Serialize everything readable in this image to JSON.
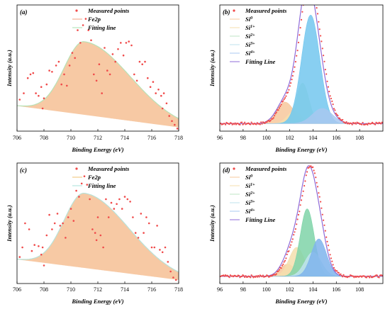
{
  "chart_data": [
    {
      "panel": "(a)",
      "type": "scatter",
      "xlabel": "Binding Energy (eV)",
      "ylabel": "Intensity (a.u.)",
      "xlim": [
        706,
        718
      ],
      "ylim": [
        0,
        1
      ],
      "xticks": [
        706,
        708,
        710,
        712,
        714,
        716,
        718
      ],
      "legend_position": "top-left",
      "legend": [
        {
          "label": "Measured points",
          "kind": "points",
          "color": "#f04a4a"
        },
        {
          "label": "Fe2p",
          "kind": "line",
          "color": "#f0a080"
        },
        {
          "label": "Fitting line",
          "kind": "line",
          "color": "#a8e0b0"
        }
      ],
      "components": [
        {
          "kind": "fill",
          "color": "#f7c9a4",
          "stroke": "#b8e2b6",
          "center": 711.0,
          "height": 0.58,
          "left_width": 1.5,
          "right_width": 3.4
        }
      ],
      "baseline": [
        [
          706,
          0.2
        ],
        [
          718,
          0.03
        ]
      ],
      "points": [
        [
          706.2,
          0.25
        ],
        [
          706.5,
          0.3
        ],
        [
          706.8,
          0.42
        ],
        [
          707.0,
          0.45
        ],
        [
          707.2,
          0.46
        ],
        [
          707.4,
          0.3
        ],
        [
          707.6,
          0.28
        ],
        [
          707.8,
          0.35
        ],
        [
          708.0,
          0.26
        ],
        [
          708.2,
          0.37
        ],
        [
          708.4,
          0.48
        ],
        [
          708.6,
          0.47
        ],
        [
          708.9,
          0.52
        ],
        [
          709.1,
          0.55
        ],
        [
          709.3,
          0.37
        ],
        [
          709.5,
          0.45
        ],
        [
          709.7,
          0.36
        ],
        [
          709.9,
          0.52
        ],
        [
          710.1,
          0.62
        ],
        [
          710.3,
          0.58
        ],
        [
          710.5,
          0.8
        ],
        [
          710.7,
          0.7
        ],
        [
          710.9,
          0.84
        ],
        [
          711.1,
          0.89
        ],
        [
          711.3,
          0.8
        ],
        [
          711.5,
          0.72
        ],
        [
          711.7,
          0.45
        ],
        [
          711.9,
          0.4
        ],
        [
          712.1,
          0.53
        ],
        [
          712.3,
          0.3
        ],
        [
          712.5,
          0.66
        ],
        [
          712.7,
          0.48
        ],
        [
          712.9,
          0.45
        ],
        [
          713.1,
          0.61
        ],
        [
          713.3,
          0.55
        ],
        [
          713.5,
          0.65
        ],
        [
          713.7,
          0.7
        ],
        [
          713.9,
          0.6
        ],
        [
          714.1,
          0.7
        ],
        [
          714.3,
          0.71
        ],
        [
          714.5,
          0.68
        ],
        [
          714.7,
          0.45
        ],
        [
          714.9,
          0.4
        ],
        [
          715.1,
          0.55
        ],
        [
          715.3,
          0.53
        ],
        [
          715.5,
          0.55
        ],
        [
          715.7,
          0.42
        ],
        [
          715.9,
          0.35
        ],
        [
          716.1,
          0.39
        ],
        [
          716.3,
          0.3
        ],
        [
          716.5,
          0.33
        ],
        [
          716.7,
          0.28
        ],
        [
          716.9,
          0.3
        ],
        [
          717.1,
          0.22
        ],
        [
          717.3,
          0.12
        ],
        [
          717.5,
          0.08
        ],
        [
          717.7,
          0.05
        ],
        [
          717.9,
          0.02
        ],
        [
          716.8,
          0.18
        ],
        [
          707.9,
          0.18
        ]
      ]
    },
    {
      "panel": "(b)",
      "type": "line",
      "xlabel": "Binding Energy (eV)",
      "ylabel": "Intensity (a.u.)",
      "xlim": [
        96,
        110
      ],
      "ylim": [
        0,
        1
      ],
      "xticks": [
        96,
        98,
        100,
        102,
        104,
        106,
        108
      ],
      "legend_position": "top-left",
      "legend": [
        {
          "label": "Measured points",
          "kind": "points",
          "color": "#f04a4a"
        },
        {
          "label": "Si",
          "sup": "0",
          "kind": "line",
          "color": "#f7c89c"
        },
        {
          "label": "Si",
          "sup": "1+",
          "kind": "line",
          "color": "#f5dfae"
        },
        {
          "label": "Si",
          "sup": "2+",
          "kind": "line",
          "color": "#bfe6c4"
        },
        {
          "label": "Si",
          "sup": "3+",
          "kind": "line",
          "color": "#bfe3ee"
        },
        {
          "label": "Si",
          "sup": "4+",
          "kind": "line",
          "color": "#a8c8f0"
        },
        {
          "label": "Fitting Line",
          "kind": "line",
          "color": "#8f6bd8"
        }
      ],
      "baseline": 0.06,
      "components": [
        {
          "name": "Si0",
          "center": 101.6,
          "height": 0.17,
          "width": 0.75,
          "color": "#f7c89c"
        },
        {
          "name": "Si1+",
          "center": 102.4,
          "height": 0.1,
          "width": 0.6,
          "color": "#f5dfae"
        },
        {
          "name": "Si2+",
          "center": 103.1,
          "height": 0.32,
          "width": 0.55,
          "color": "#bfe6c4"
        },
        {
          "name": "Si3+",
          "center": 103.8,
          "height": 0.86,
          "width": 0.78,
          "color": "#73c7ee"
        },
        {
          "name": "Si4+",
          "center": 104.8,
          "height": 0.12,
          "width": 0.85,
          "color": "#a8c8f0"
        }
      ],
      "fit_color": "#8f6bd8",
      "measured_color": "#f04a4a"
    },
    {
      "panel": "(c)",
      "type": "scatter",
      "xlabel": "Binding Energy (eV)",
      "ylabel": "Intensity (a.u.)",
      "xlim": [
        706,
        718
      ],
      "ylim": [
        0,
        1
      ],
      "xticks": [
        706,
        708,
        710,
        712,
        714,
        716,
        718
      ],
      "legend_position": "top-left",
      "legend": [
        {
          "label": "Measured points",
          "kind": "points",
          "color": "#f04a4a"
        },
        {
          "label": "Fe2p",
          "kind": "line",
          "color": "#f0c070"
        },
        {
          "label": "Fitting line",
          "kind": "line",
          "color": "#a8e0d8"
        }
      ],
      "components": [
        {
          "kind": "fill",
          "color": "#f7c9a4",
          "stroke": "#b8e2d8",
          "center": 711.0,
          "height": 0.62,
          "left_width": 1.5,
          "right_width": 3.3
        }
      ],
      "baseline": [
        [
          706,
          0.2
        ],
        [
          718,
          0.03
        ]
      ],
      "points": [
        [
          706.2,
          0.22
        ],
        [
          706.4,
          0.3
        ],
        [
          706.6,
          0.5
        ],
        [
          706.9,
          0.45
        ],
        [
          707.1,
          0.27
        ],
        [
          707.3,
          0.32
        ],
        [
          707.6,
          0.31
        ],
        [
          707.9,
          0.3
        ],
        [
          708.0,
          0.15
        ],
        [
          708.2,
          0.4
        ],
        [
          708.4,
          0.57
        ],
        [
          708.6,
          0.45
        ],
        [
          708.8,
          0.5
        ],
        [
          709.0,
          0.58
        ],
        [
          709.2,
          0.48
        ],
        [
          709.4,
          0.5
        ],
        [
          709.6,
          0.38
        ],
        [
          709.8,
          0.55
        ],
        [
          710.0,
          0.62
        ],
        [
          710.2,
          0.52
        ],
        [
          710.4,
          0.77
        ],
        [
          710.6,
          0.72
        ],
        [
          710.8,
          0.83
        ],
        [
          711.0,
          0.89
        ],
        [
          711.2,
          0.82
        ],
        [
          711.4,
          0.7
        ],
        [
          711.6,
          0.45
        ],
        [
          711.8,
          0.42
        ],
        [
          712.0,
          0.55
        ],
        [
          712.2,
          0.4
        ],
        [
          712.4,
          0.3
        ],
        [
          712.6,
          0.7
        ],
        [
          712.8,
          0.55
        ],
        [
          713.0,
          0.67
        ],
        [
          713.2,
          0.62
        ],
        [
          713.4,
          0.66
        ],
        [
          713.6,
          0.7
        ],
        [
          713.8,
          0.62
        ],
        [
          714.0,
          0.72
        ],
        [
          714.2,
          0.7
        ],
        [
          714.4,
          0.68
        ],
        [
          714.6,
          0.55
        ],
        [
          714.8,
          0.42
        ],
        [
          715.0,
          0.38
        ],
        [
          715.2,
          0.58
        ],
        [
          715.4,
          0.42
        ],
        [
          715.6,
          0.55
        ],
        [
          715.8,
          0.5
        ],
        [
          716.0,
          0.3
        ],
        [
          716.2,
          0.3
        ],
        [
          716.4,
          0.48
        ],
        [
          716.6,
          0.28
        ],
        [
          716.8,
          0.26
        ],
        [
          717.0,
          0.3
        ],
        [
          717.2,
          0.18
        ],
        [
          717.4,
          0.1
        ],
        [
          717.6,
          0.05
        ],
        [
          717.8,
          0.03
        ],
        [
          711.9,
          0.36
        ],
        [
          707.8,
          0.24
        ]
      ]
    },
    {
      "panel": "(d)",
      "type": "line",
      "xlabel": "Binding Energy (eV)",
      "ylabel": "Intensity (a.u.)",
      "xlim": [
        96,
        110
      ],
      "ylim": [
        0,
        1
      ],
      "xticks": [
        96,
        98,
        100,
        102,
        104,
        106,
        108
      ],
      "legend_position": "top-left",
      "legend": [
        {
          "label": "Measured points",
          "kind": "points",
          "color": "#f04a4a"
        },
        {
          "label": "Si",
          "sup": "0",
          "kind": "line",
          "color": "#f7c89c"
        },
        {
          "label": "Si",
          "sup": "1+",
          "kind": "line",
          "color": "#f5dfae"
        },
        {
          "label": "Si",
          "sup": "2+",
          "kind": "line",
          "color": "#bfe6c4"
        },
        {
          "label": "Si",
          "sup": "3+",
          "kind": "line",
          "color": "#bfe3ee"
        },
        {
          "label": "Si",
          "sup": "4+",
          "kind": "line",
          "color": "#a8c8f0"
        },
        {
          "label": "Fitting Line",
          "kind": "line",
          "color": "#8f6bd8"
        }
      ],
      "baseline": 0.06,
      "components": [
        {
          "name": "Si0",
          "center": 101.8,
          "height": 0.1,
          "width": 0.65,
          "color": "#f7c89c"
        },
        {
          "name": "Si1+",
          "center": 102.6,
          "height": 0.24,
          "width": 0.65,
          "color": "#f5dfae"
        },
        {
          "name": "Si2+",
          "center": 103.5,
          "height": 0.56,
          "width": 0.6,
          "color": "#7fd4a8"
        },
        {
          "name": "Si3+",
          "center": 104.0,
          "height": 0.2,
          "width": 0.7,
          "color": "#bfe3ee"
        },
        {
          "name": "Si4+",
          "center": 104.5,
          "height": 0.31,
          "width": 0.65,
          "color": "#7fb4ec"
        }
      ],
      "fit_color": "#8f6bd8",
      "measured_color": "#f04a4a"
    }
  ]
}
